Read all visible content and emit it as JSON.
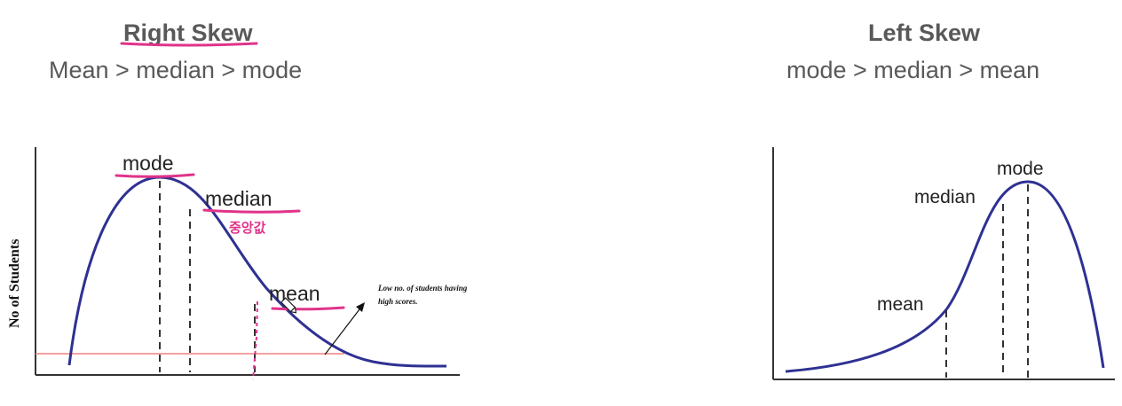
{
  "right_skew": {
    "title": "Right Skew",
    "subtitle": "Mean > median > mode",
    "y_axis_label": "No of Students",
    "labels": {
      "mode": "mode",
      "median": "median",
      "mean": "mean"
    },
    "annotation_line1": "Low no. of students having",
    "annotation_line2": "high scores.",
    "handwritten_note": "중앙값"
  },
  "left_skew": {
    "title": "Left Skew",
    "subtitle": "mode > median > mean",
    "labels": {
      "mode": "mode",
      "median": "median",
      "mean": "mean"
    }
  },
  "colors": {
    "curve": "#2e3192",
    "highlight": "#e0338a",
    "reference_line": "#f08080",
    "text": "#595959"
  }
}
